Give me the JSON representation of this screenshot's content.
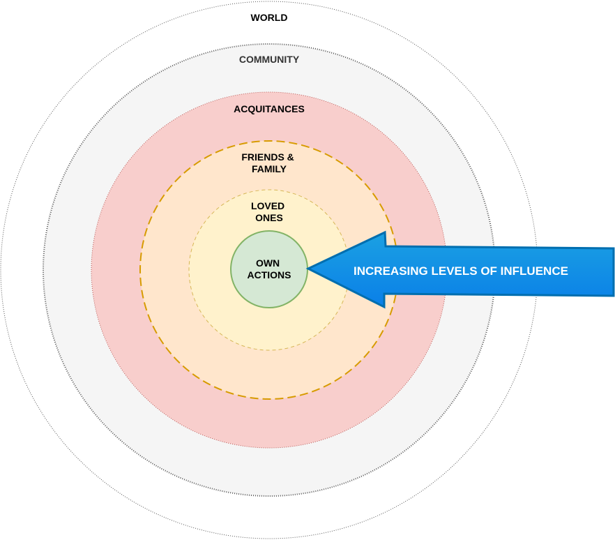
{
  "rings": [
    {
      "id": "world",
      "lines": [
        "WORLD"
      ],
      "fill": "#ffffff",
      "stroke": "#555555",
      "label_color": "#000000"
    },
    {
      "id": "community",
      "lines": [
        "COMMUNITY"
      ],
      "fill": "#f5f5f5",
      "stroke": "#555555",
      "label_color": "#333333"
    },
    {
      "id": "acquitances",
      "lines": [
        "ACQUITANCES"
      ],
      "fill": "#f8cecc",
      "stroke": "#b85450",
      "label_color": "#000000"
    },
    {
      "id": "friends-family",
      "lines": [
        "FRIENDS &",
        "FAMILY"
      ],
      "fill": "#ffe6cc",
      "stroke": "#d79b00",
      "label_color": "#000000"
    },
    {
      "id": "loved-ones",
      "lines": [
        "LOVED",
        "ONES"
      ],
      "fill": "#fff2cc",
      "stroke": "#d6b656",
      "label_color": "#000000"
    },
    {
      "id": "own-actions",
      "lines": [
        "OWN",
        "ACTIONS"
      ],
      "fill": "#d5e8d4",
      "stroke": "#82b366",
      "label_color": "#000000"
    }
  ],
  "arrow": {
    "label": "INCREASING LEVELS OF INFLUENCE",
    "fill_top": "#1ba1e2",
    "fill_bottom": "#0a7fe8",
    "stroke": "#006eaf",
    "label_color": "#ffffff"
  }
}
